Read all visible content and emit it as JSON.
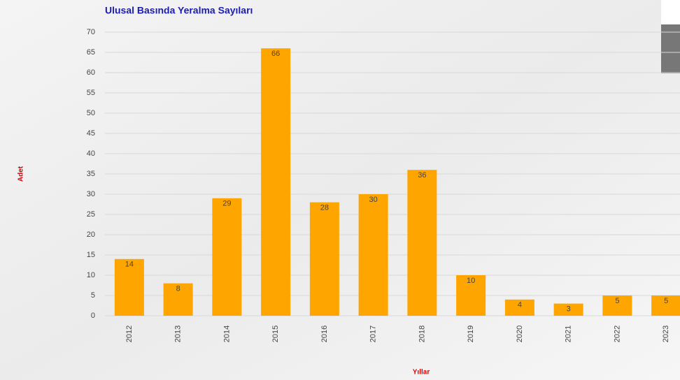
{
  "chart_data": {
    "type": "bar",
    "title": "Ulusal Basında Yeralma Sayıları",
    "y_label": "Adet",
    "x_label": "Yıllar",
    "categories": [
      "2012",
      "2013",
      "2014",
      "2015",
      "2016",
      "2017",
      "2018",
      "2019",
      "2020",
      "2021",
      "2022",
      "2023"
    ],
    "values": [
      14,
      8,
      29,
      66,
      28,
      30,
      36,
      10,
      4,
      3,
      5,
      5
    ],
    "color": "#ffa500",
    "ylim": [
      0,
      70
    ],
    "yticks": [
      0,
      5,
      10,
      15,
      20,
      25,
      30,
      35,
      40,
      45,
      50,
      55,
      60,
      65,
      70
    ],
    "grid": true
  }
}
